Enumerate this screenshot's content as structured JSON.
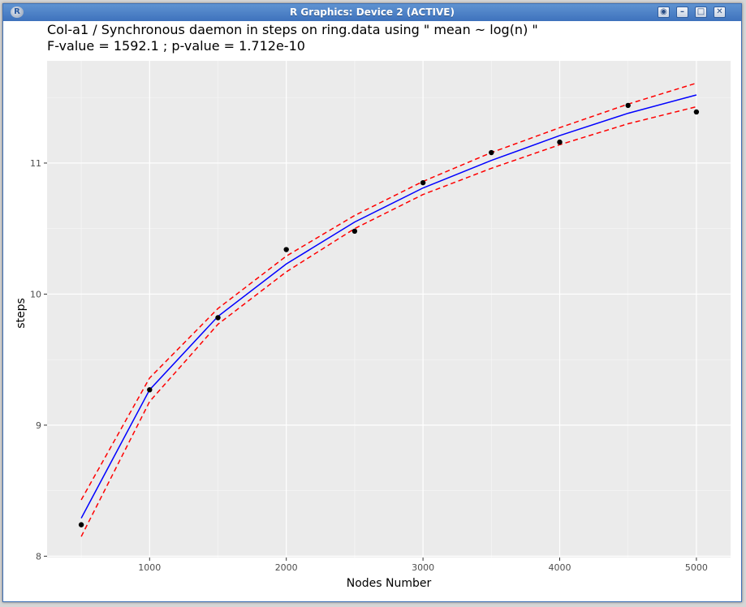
{
  "window": {
    "title": "R Graphics: Device 2 (ACTIVE)",
    "app_icon": "r-logo-icon",
    "controls": [
      "pin-icon",
      "minimize-icon",
      "maximize-icon",
      "close-icon"
    ]
  },
  "chart_data": {
    "type": "line",
    "title": "Col-a1 / Synchronous daemon in steps on ring.data using \" mean ~ log(n) \"",
    "subtitle": "F-value = 1592.1  ; p-value = 1.712e-10",
    "xlabel": "Nodes Number",
    "ylabel": "steps",
    "x_ticks": [
      1000,
      2000,
      3000,
      4000,
      5000
    ],
    "y_ticks": [
      8,
      9,
      10,
      11
    ],
    "x_tick_labels": [
      "1000",
      "2000",
      "3000",
      "4000",
      "5000"
    ],
    "y_tick_labels": [
      "8",
      "9",
      "10",
      "11"
    ],
    "xlim": [
      250,
      5250
    ],
    "ylim": [
      7.99,
      11.78
    ],
    "grid": true,
    "background": "#ebebeb",
    "points": {
      "x": [
        500,
        1000,
        1500,
        2000,
        2500,
        3000,
        3500,
        4000,
        4500,
        5000
      ],
      "y": [
        8.24,
        9.27,
        9.82,
        10.34,
        10.48,
        10.85,
        11.08,
        11.16,
        11.44,
        11.39
      ],
      "color": "#000000"
    },
    "series": [
      {
        "x": [
          500,
          1000,
          1500,
          2000,
          2500,
          3000,
          3500,
          4000,
          4500,
          5000
        ],
        "values": [
          8.29,
          9.27,
          9.83,
          10.23,
          10.55,
          10.81,
          11.02,
          11.21,
          11.38,
          11.52
        ],
        "color": "#0000ff",
        "style": "solid"
      },
      {
        "x": [
          500,
          1000,
          1500,
          2000,
          2500,
          3000,
          3500,
          4000,
          4500,
          5000
        ],
        "values": [
          8.43,
          9.36,
          9.89,
          10.29,
          10.6,
          10.86,
          11.08,
          11.27,
          11.45,
          11.61
        ],
        "color": "#ff0000",
        "style": "dashed"
      },
      {
        "x": [
          500,
          1000,
          1500,
          2000,
          2500,
          3000,
          3500,
          4000,
          4500,
          5000
        ],
        "values": [
          8.15,
          9.18,
          9.77,
          10.17,
          10.5,
          10.76,
          10.96,
          11.14,
          11.3,
          11.43
        ],
        "color": "#ff0000",
        "style": "dashed"
      }
    ]
  }
}
